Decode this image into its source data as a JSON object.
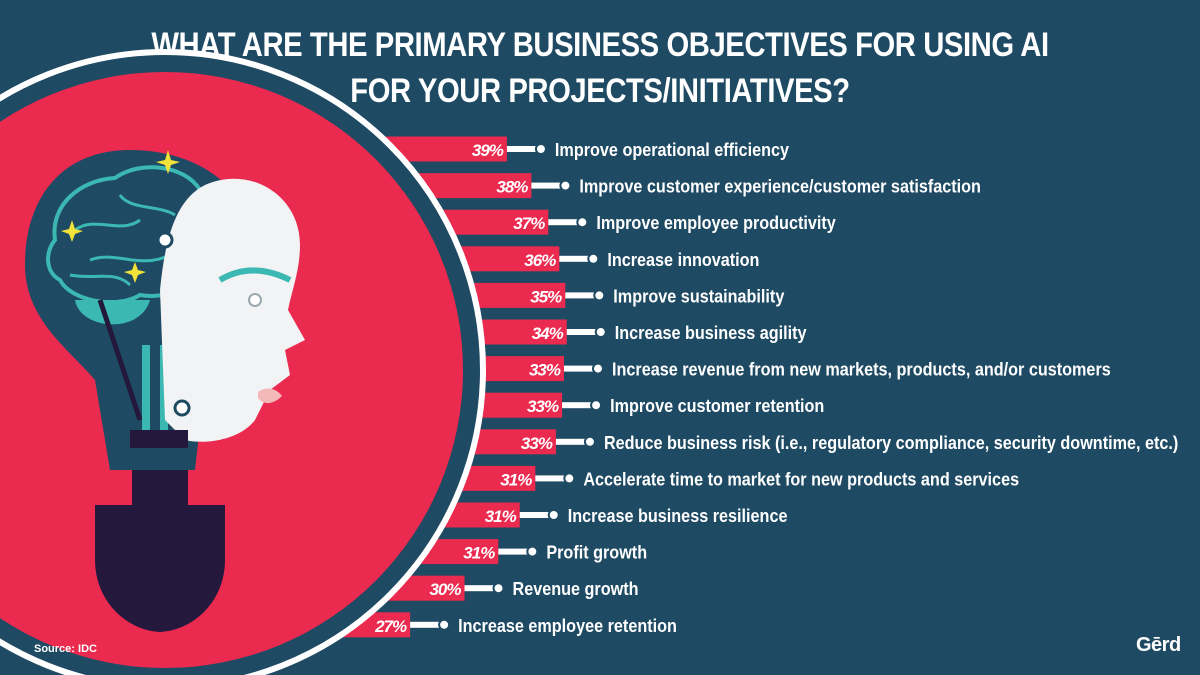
{
  "title_lines": [
    "WHAT ARE THE PRIMARY BUSINESS OBJECTIVES FOR USING AI",
    "FOR YOUR PROJECTS/INITIATIVES?"
  ],
  "source": "Source: IDC",
  "logo": "Gērd",
  "colors": {
    "background": "#1f4a63",
    "bar": "#ea2a4f",
    "label_text": "#ffffff",
    "pointer": "#ffffff",
    "bulb_border": "#ffffff",
    "teal": "#3cb8b3",
    "dark": "#24193d"
  },
  "chart_data": {
    "type": "bar",
    "orientation": "horizontal",
    "categories": [
      "Improve operational efficiency",
      "Improve customer experience/customer satisfaction",
      "Improve employee productivity",
      "Increase innovation",
      "Improve sustainability",
      "Increase business agility",
      "Increase revenue from new markets, products, and/or customers",
      "Improve customer retention",
      "Reduce business risk (i.e., regulatory compliance, security downtime, etc.)",
      "Accelerate time to market for new products and services",
      "Increase business resilience",
      "Profit growth",
      "Revenue growth",
      "Increase employee retention"
    ],
    "values": [
      39,
      38,
      37,
      36,
      35,
      34,
      33,
      33,
      33,
      31,
      31,
      31,
      30,
      27
    ],
    "value_labels": [
      "39%",
      "38%",
      "37%",
      "36%",
      "35%",
      "34%",
      "33%",
      "33%",
      "33%",
      "31%",
      "31%",
      "31%",
      "30%",
      "27%"
    ],
    "units": "%"
  }
}
